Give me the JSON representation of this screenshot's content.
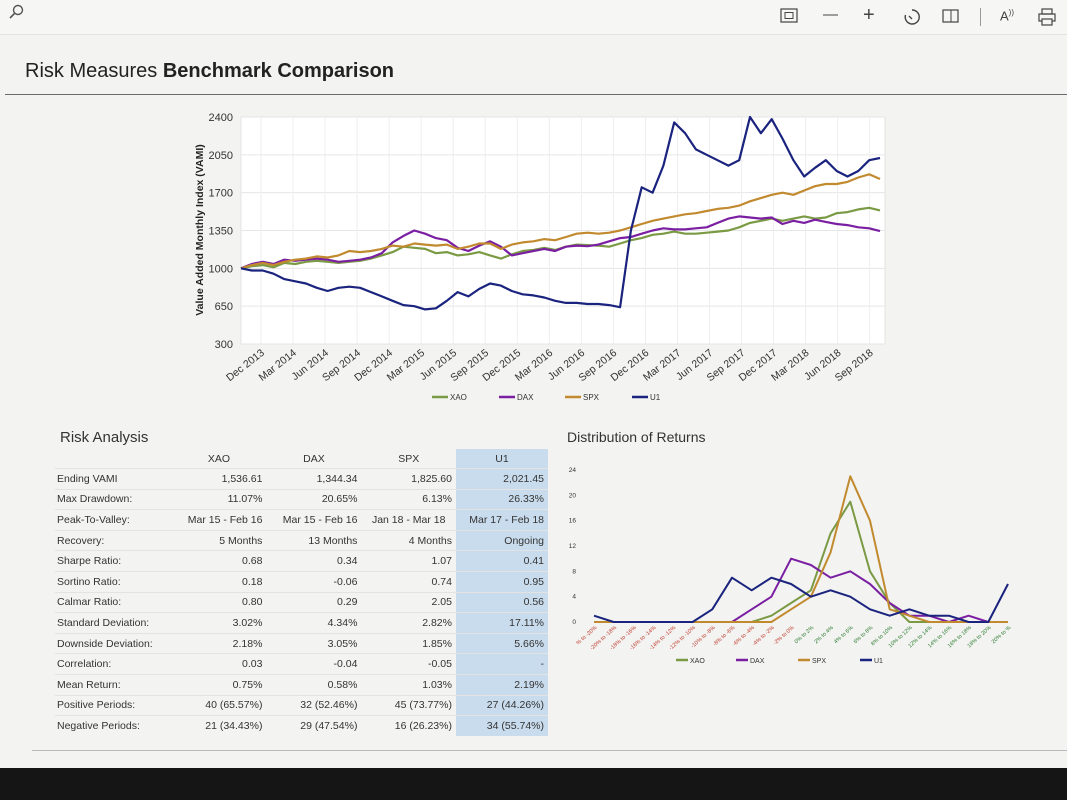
{
  "toolbar": {
    "icons": [
      "search-icon",
      "fit-page-icon",
      "zoom-out-icon",
      "zoom-in-icon",
      "rotate-icon",
      "page-view-icon",
      "read-aloud-icon",
      "print-icon"
    ]
  },
  "title": {
    "light": "Risk Measures",
    "bold": "Benchmark Comparison"
  },
  "chart_data": [
    {
      "type": "line",
      "ylabel": "Value Added Monthly Index (VAMI)",
      "ylim": [
        300,
        2400
      ],
      "yticks": [
        2400,
        2050,
        1700,
        1350,
        1000,
        650,
        300
      ],
      "xtick_labels": [
        "Dec 2013",
        "Mar 2014",
        "Jun 2014",
        "Sep 2014",
        "Dec 2014",
        "Mar 2015",
        "Jun 2015",
        "Sep 2015",
        "Dec 2015",
        "Mar 2016",
        "Jun 2016",
        "Sep 2016",
        "Dec 2016",
        "Mar 2017",
        "Jun 2017",
        "Sep 2017",
        "Dec 2017",
        "Mar 2018",
        "Jun 2018",
        "Sep 2018"
      ],
      "grid": true,
      "legend_position": "bottom",
      "series": [
        {
          "name": "XAO",
          "color": "#7a9a44",
          "values": [
            1000,
            1020,
            1030,
            1010,
            1050,
            1040,
            1060,
            1070,
            1060,
            1050,
            1060,
            1070,
            1090,
            1120,
            1150,
            1200,
            1190,
            1180,
            1140,
            1150,
            1120,
            1130,
            1150,
            1120,
            1090,
            1130,
            1160,
            1170,
            1190,
            1170,
            1200,
            1220,
            1215,
            1210,
            1200,
            1230,
            1260,
            1280,
            1310,
            1320,
            1340,
            1320,
            1320,
            1330,
            1340,
            1350,
            1380,
            1420,
            1440,
            1460,
            1440,
            1460,
            1480,
            1460,
            1470,
            1510,
            1520,
            1545,
            1560,
            1536
          ]
        },
        {
          "name": "DAX",
          "color": "#7b1fa2",
          "values": [
            1000,
            1040,
            1060,
            1040,
            1080,
            1070,
            1080,
            1090,
            1080,
            1060,
            1070,
            1080,
            1100,
            1140,
            1240,
            1300,
            1350,
            1320,
            1280,
            1260,
            1190,
            1160,
            1210,
            1250,
            1200,
            1120,
            1140,
            1160,
            1180,
            1160,
            1200,
            1210,
            1205,
            1220,
            1250,
            1280,
            1290,
            1320,
            1350,
            1370,
            1360,
            1360,
            1370,
            1380,
            1420,
            1460,
            1480,
            1470,
            1460,
            1470,
            1410,
            1440,
            1420,
            1450,
            1430,
            1410,
            1400,
            1380,
            1370,
            1344
          ]
        },
        {
          "name": "SPX",
          "color": "#c28a2f",
          "values": [
            1000,
            1030,
            1050,
            1030,
            1060,
            1080,
            1090,
            1110,
            1100,
            1120,
            1160,
            1150,
            1160,
            1180,
            1210,
            1200,
            1230,
            1220,
            1210,
            1220,
            1180,
            1200,
            1230,
            1230,
            1180,
            1220,
            1240,
            1250,
            1270,
            1260,
            1290,
            1320,
            1330,
            1320,
            1330,
            1350,
            1380,
            1410,
            1440,
            1460,
            1480,
            1500,
            1510,
            1530,
            1550,
            1560,
            1580,
            1620,
            1650,
            1680,
            1700,
            1680,
            1720,
            1760,
            1780,
            1780,
            1800,
            1840,
            1870,
            1826
          ]
        },
        {
          "name": "U1",
          "color": "#1a237e",
          "values": [
            1000,
            980,
            980,
            950,
            900,
            880,
            860,
            820,
            790,
            820,
            830,
            820,
            780,
            740,
            700,
            660,
            650,
            620,
            630,
            700,
            780,
            740,
            810,
            860,
            840,
            790,
            760,
            750,
            730,
            700,
            680,
            680,
            670,
            670,
            660,
            640,
            1350,
            1750,
            1700,
            1950,
            2350,
            2250,
            2100,
            2050,
            2000,
            1950,
            2000,
            2400,
            2250,
            2380,
            2200,
            2000,
            1850,
            1930,
            2000,
            1900,
            1850,
            1900,
            2000,
            2021
          ]
        }
      ]
    },
    {
      "type": "line",
      "title": "Distribution of Returns",
      "yticks": [
        24,
        20,
        16,
        12,
        8,
        4,
        0
      ],
      "categories": [
        "% to -20%",
        "-20% to -18%",
        "-18% to -16%",
        "-16% to -14%",
        "-14% to -12%",
        "-12% to -10%",
        "-10% to -8%",
        "-8% to -6%",
        "-6% to -4%",
        "-4% to -2%",
        "-2% to 0%",
        "0% to 2%",
        "2% to 4%",
        "4% to 6%",
        "6% to 8%",
        "8% to 10%",
        "10% to 12%",
        "12% to 14%",
        "14% to 16%",
        "16% to 18%",
        "18% to 20%",
        "20% to %"
      ],
      "legend_position": "bottom",
      "series": [
        {
          "name": "XAO",
          "color": "#7a9a44",
          "values": [
            0,
            0,
            0,
            0,
            0,
            0,
            0,
            0,
            0,
            1,
            3,
            5,
            14,
            19,
            8,
            3,
            0,
            0,
            0,
            0,
            0,
            0
          ]
        },
        {
          "name": "DAX",
          "color": "#7b1fa2",
          "values": [
            0,
            0,
            0,
            0,
            0,
            0,
            0,
            0,
            2,
            4,
            10,
            9,
            7,
            8,
            6,
            3,
            1,
            1,
            0,
            1,
            0,
            0
          ]
        },
        {
          "name": "SPX",
          "color": "#c28a2f",
          "values": [
            0,
            0,
            0,
            0,
            0,
            0,
            0,
            0,
            0,
            0,
            2,
            4,
            11,
            23,
            16,
            2,
            1,
            0,
            0,
            0,
            0,
            0
          ]
        },
        {
          "name": "U1",
          "color": "#1a237e",
          "values": [
            1,
            0,
            0,
            0,
            0,
            0,
            2,
            7,
            5,
            7,
            6,
            4,
            5,
            4,
            2,
            1,
            2,
            1,
            1,
            0,
            0,
            6
          ]
        }
      ]
    }
  ],
  "risk": {
    "heading": "Risk Analysis",
    "columns": [
      "XAO",
      "DAX",
      "SPX",
      "U1"
    ],
    "rows": [
      {
        "label": "Ending VAMI",
        "values": [
          "1,536.61",
          "1,344.34",
          "1,825.60",
          "2,021.45"
        ]
      },
      {
        "label": "Max Drawdown:",
        "values": [
          "11.07%",
          "20.65%",
          "6.13%",
          "26.33%"
        ]
      },
      {
        "label": "Peak-To-Valley:",
        "values": [
          "Mar 15 - Feb 16",
          "Mar 15 - Feb 16",
          "Jan 18 - Mar 18",
          "Mar 17 - Feb 18"
        ]
      },
      {
        "label": "Recovery:",
        "values": [
          "5 Months",
          "13 Months",
          "4 Months",
          "Ongoing"
        ]
      },
      {
        "label": "Sharpe Ratio:",
        "values": [
          "0.68",
          "0.34",
          "1.07",
          "0.41"
        ]
      },
      {
        "label": "Sortino Ratio:",
        "values": [
          "0.18",
          "-0.06",
          "0.74",
          "0.95"
        ]
      },
      {
        "label": "Calmar Ratio:",
        "values": [
          "0.80",
          "0.29",
          "2.05",
          "0.56"
        ]
      },
      {
        "label": "Standard Deviation:",
        "values": [
          "3.02%",
          "4.34%",
          "2.82%",
          "17.11%"
        ]
      },
      {
        "label": "Downside Deviation:",
        "values": [
          "2.18%",
          "3.05%",
          "1.85%",
          "5.66%"
        ]
      },
      {
        "label": "Correlation:",
        "values": [
          "0.03",
          "-0.04",
          "-0.05",
          "-"
        ]
      },
      {
        "label": "Mean Return:",
        "values": [
          "0.75%",
          "0.58%",
          "1.03%",
          "2.19%"
        ]
      },
      {
        "label": "Positive Periods:",
        "values": [
          "40 (65.57%)",
          "32 (52.46%)",
          "45 (73.77%)",
          "27 (44.26%)"
        ]
      },
      {
        "label": "Negative Periods:",
        "values": [
          "21 (34.43%)",
          "29 (47.54%)",
          "16 (26.23%)",
          "34 (55.74%)"
        ]
      }
    ]
  }
}
